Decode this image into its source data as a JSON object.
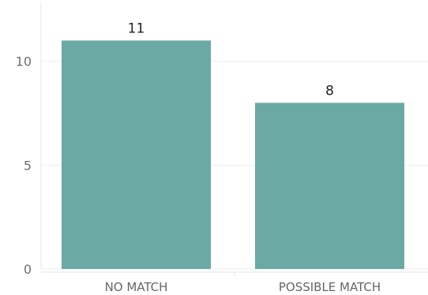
{
  "chart_data": {
    "type": "bar",
    "categories": [
      "NO MATCH",
      "POSSIBLE MATCH"
    ],
    "values": [
      11,
      8
    ],
    "data_labels": [
      "11",
      "8"
    ],
    "title": "",
    "xlabel": "",
    "ylabel": "",
    "ylim": [
      0,
      12.8
    ],
    "yticks": [
      0,
      5,
      10
    ],
    "grid": true,
    "bar_color": "#6aa9a4"
  }
}
